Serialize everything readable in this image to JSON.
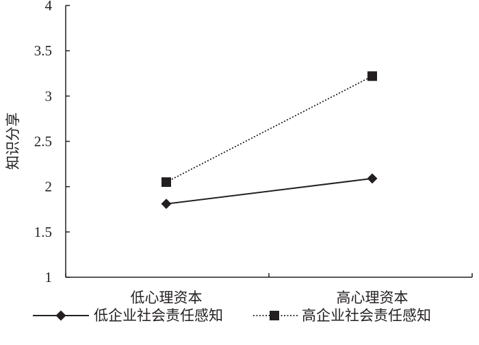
{
  "chart_data": {
    "type": "line",
    "categories": [
      "低心理资本",
      "高心理资本"
    ],
    "ylabel": "知识分享",
    "ylim": [
      1,
      4
    ],
    "yticks": [
      "1",
      "1.5",
      "2",
      "2.5",
      "3",
      "3.5",
      "4"
    ],
    "ytick_values": [
      1,
      1.5,
      2,
      2.5,
      3,
      3.5,
      4
    ],
    "grid": false,
    "legend_position": "bottom",
    "series": [
      {
        "name": "低企业社会责任感知",
        "values": [
          1.81,
          2.09
        ],
        "line": "solid",
        "marker": "diamond",
        "color": "#231f20"
      },
      {
        "name": "高企业社会责任感知",
        "values": [
          2.05,
          3.22
        ],
        "line": "dotted",
        "marker": "square",
        "color": "#231f20"
      }
    ]
  }
}
